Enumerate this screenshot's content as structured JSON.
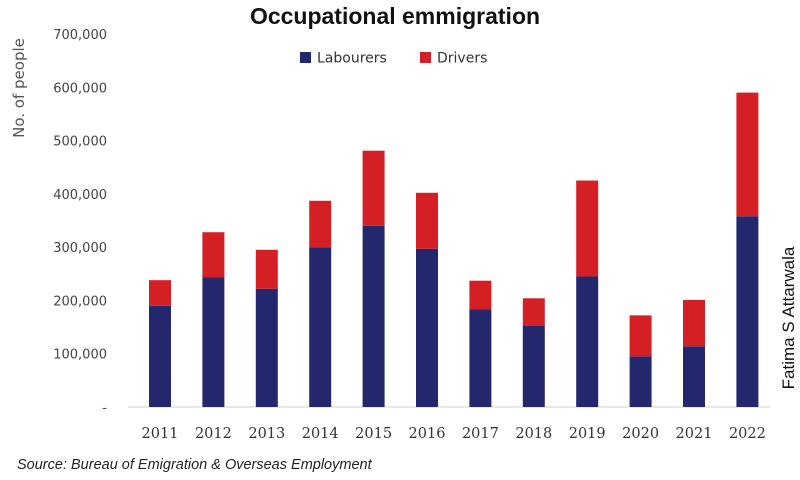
{
  "chart_data": {
    "type": "bar",
    "stacked": true,
    "title": "Occupational emmigration",
    "ylabel": "No. of people",
    "xlabel": "",
    "categories": [
      "2011",
      "2012",
      "2013",
      "2014",
      "2015",
      "2016",
      "2017",
      "2018",
      "2019",
      "2020",
      "2021",
      "2022"
    ],
    "series": [
      {
        "name": "Labourers",
        "color": "#23286e",
        "values": [
          190000,
          243000,
          222000,
          300000,
          340000,
          297000,
          183000,
          152000,
          245000,
          95000,
          114000,
          358000
        ]
      },
      {
        "name": "Drivers",
        "color": "#d42025",
        "values": [
          48000,
          85000,
          73000,
          87000,
          141000,
          105000,
          54000,
          52000,
          180000,
          77000,
          87000,
          232000
        ]
      }
    ],
    "ylim": [
      0,
      700000
    ],
    "yticks": [
      "-",
      "100,000",
      "200,000",
      "300,000",
      "400,000",
      "500,000",
      "600,000",
      "700,000"
    ],
    "grid": false,
    "legend_position": "top-center"
  },
  "annotations": {
    "credit": "Fatima S Attarwala",
    "source": "Source: Bureau of Emigration & Overseas Employment"
  }
}
